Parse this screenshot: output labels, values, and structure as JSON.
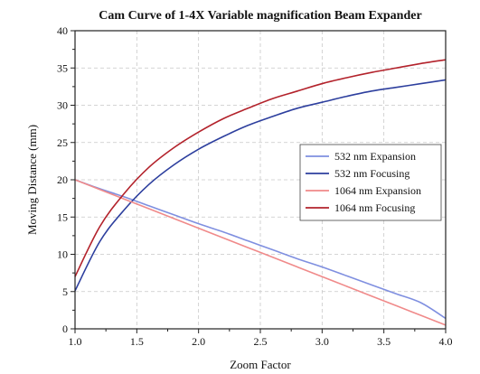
{
  "chart_data": {
    "type": "line",
    "title": "Cam Curve of 1-4X Variable magnification Beam Expander",
    "xlabel": "Zoom Factor",
    "ylabel": "Moving Distance (mm)",
    "xlim": [
      1.0,
      4.0
    ],
    "ylim": [
      0,
      40
    ],
    "x_ticks": [
      "1.0",
      "1.5",
      "2.0",
      "2.5",
      "3.0",
      "3.5",
      "4.0"
    ],
    "y_ticks": [
      "0",
      "5",
      "10",
      "15",
      "20",
      "25",
      "30",
      "35",
      "40"
    ],
    "grid": true,
    "legend_position": "center-right",
    "series": [
      {
        "name": "532 nm Expansion",
        "color": "#7f8fe0",
        "x": [
          1.0,
          1.2,
          1.4,
          1.6,
          1.8,
          2.0,
          2.2,
          2.4,
          2.6,
          2.8,
          3.0,
          3.2,
          3.4,
          3.6,
          3.8,
          4.0
        ],
        "y": [
          20.0,
          18.8,
          17.7,
          16.5,
          15.3,
          14.1,
          13.0,
          11.8,
          10.6,
          9.4,
          8.3,
          7.1,
          5.9,
          4.7,
          3.5,
          1.4
        ]
      },
      {
        "name": "532 nm Focusing",
        "color": "#2d3f9e",
        "x": [
          1.0,
          1.2,
          1.4,
          1.6,
          1.8,
          2.0,
          2.2,
          2.4,
          2.6,
          2.8,
          3.0,
          3.2,
          3.4,
          3.6,
          3.8,
          4.0
        ],
        "y": [
          5.1,
          11.7,
          16.0,
          19.4,
          22.0,
          24.1,
          25.8,
          27.3,
          28.5,
          29.6,
          30.4,
          31.2,
          31.9,
          32.4,
          32.9,
          33.4
        ]
      },
      {
        "name": "1064 nm Expansion",
        "color": "#f08a8a",
        "x": [
          1.0,
          1.2,
          1.4,
          1.6,
          1.8,
          2.0,
          2.2,
          2.4,
          2.6,
          2.8,
          3.0,
          3.2,
          3.4,
          3.6,
          3.8,
          4.0
        ],
        "y": [
          20.0,
          18.7,
          17.4,
          16.1,
          14.8,
          13.5,
          12.2,
          10.9,
          9.6,
          8.3,
          7.0,
          5.7,
          4.4,
          3.1,
          1.8,
          0.5
        ]
      },
      {
        "name": "1064 nm Focusing",
        "color": "#b3222b",
        "x": [
          1.0,
          1.2,
          1.4,
          1.6,
          1.8,
          2.0,
          2.2,
          2.4,
          2.6,
          2.8,
          3.0,
          3.2,
          3.4,
          3.6,
          3.8,
          4.0
        ],
        "y": [
          7.0,
          13.7,
          18.2,
          21.7,
          24.3,
          26.4,
          28.2,
          29.6,
          30.9,
          31.9,
          32.9,
          33.7,
          34.4,
          35.0,
          35.6,
          36.1
        ]
      }
    ]
  }
}
